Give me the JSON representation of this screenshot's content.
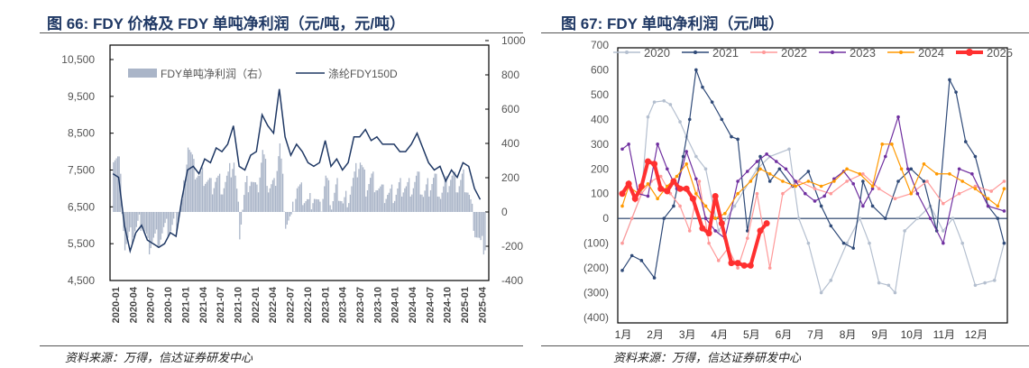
{
  "left": {
    "title": "图 66:  FDY 价格及 FDY 单吨净利润（元/吨，元/吨）",
    "source": "资料来源：万得，信达证券研发中心"
  },
  "right": {
    "title": "图 67:  FDY 单吨净利润（元/吨）",
    "source": "资料来源：万得，信达证券研发中心"
  },
  "chart_data": [
    {
      "type": "bar+line",
      "title": "FDY 价格及 FDY 单吨净利润（元/吨，元/吨）",
      "legend": [
        "FDY单吨净利润（右）",
        "涤纶FDY150D"
      ],
      "legend_placement": "top-left",
      "yleft": {
        "lim": [
          4500,
          11000
        ],
        "ticks": [
          "10,500",
          "9,500",
          "8,500",
          "7,500",
          "6,500",
          "5,500",
          "4,500"
        ],
        "tick_values": [
          10500,
          9500,
          8500,
          7500,
          6500,
          5500,
          4500
        ]
      },
      "yright": {
        "lim": [
          -400,
          1000
        ],
        "ticks": [
          "1000",
          "800",
          "600",
          "400",
          "200",
          "0",
          "-200",
          "-400"
        ],
        "tick_values": [
          1000,
          800,
          600,
          400,
          200,
          0,
          -200,
          -400
        ]
      },
      "xticks": [
        "2020-01",
        "2020-04",
        "2020-07",
        "2020-10",
        "2021-01",
        "2021-04",
        "2021-07",
        "2021-10",
        "2022-01",
        "2022-04",
        "2022-07",
        "2022-10",
        "2023-01",
        "2023-04",
        "2023-07",
        "2023-10",
        "2024-01",
        "2024-04",
        "2024-07",
        "2024-10",
        "2025-01",
        "2025-04"
      ],
      "price": [
        7400,
        7300,
        6000,
        5300,
        5800,
        6000,
        5600,
        5500,
        5400,
        5500,
        5800,
        5700,
        6700,
        7500,
        7600,
        7400,
        7800,
        7700,
        8100,
        8000,
        8200,
        8700,
        7600,
        7500,
        7900,
        8000,
        9000,
        8700,
        8500,
        9700,
        8400,
        7900,
        8200,
        8000,
        7700,
        7600,
        7700,
        8300,
        7600,
        7800,
        7500,
        7700,
        8400,
        8400,
        8600,
        8300,
        8400,
        8200,
        8200,
        8200,
        8000,
        8000,
        8200,
        8500,
        8100,
        7700,
        7500,
        7600,
        7200,
        7500,
        7300,
        7700,
        7600,
        7000,
        6700
      ],
      "profit": [
        350,
        300,
        -200,
        -150,
        -100,
        -50,
        -200,
        -150,
        -150,
        -100,
        -100,
        -50,
        50,
        400,
        250,
        200,
        200,
        150,
        200,
        150,
        200,
        300,
        -100,
        150,
        200,
        100,
        350,
        150,
        150,
        400,
        -50,
        -50,
        150,
        100,
        50,
        100,
        0,
        200,
        50,
        150,
        50,
        100,
        200,
        300,
        150,
        200,
        150,
        100,
        100,
        100,
        150,
        150,
        150,
        200,
        100,
        150,
        200,
        100,
        150,
        200,
        150,
        200,
        100,
        -100,
        -200
      ]
    },
    {
      "type": "line",
      "title": "FDY 单吨净利润（元/吨）",
      "legend_placement": "top",
      "ylim": [
        -400,
        700
      ],
      "yticks": [
        "700",
        "600",
        "500",
        "400",
        "300",
        "200",
        "100",
        "0",
        "(100)",
        "(200)",
        "(300)",
        "(400)"
      ],
      "ytick_values": [
        700,
        600,
        500,
        400,
        300,
        200,
        100,
        0,
        -100,
        -200,
        -300,
        -400
      ],
      "xticks": [
        "1月",
        "2月",
        "3月",
        "4月",
        "5月",
        "6月",
        "7月",
        "8月",
        "9月",
        "10月",
        "11月",
        "12月"
      ],
      "series": [
        {
          "name": "2020",
          "color": "#b4bfcf",
          "values": [
            [
              1,
              -100
            ],
            [
              1.3,
              0
            ],
            [
              1.6,
              100
            ],
            [
              1.8,
              410
            ],
            [
              2,
              470
            ],
            [
              2.3,
              475
            ],
            [
              2.5,
              460
            ],
            [
              2.8,
              390
            ],
            [
              3,
              330
            ],
            [
              3.3,
              250
            ],
            [
              3.6,
              200
            ],
            [
              4,
              -50
            ],
            [
              4.5,
              50
            ],
            [
              5.2,
              200
            ],
            [
              5.6,
              250
            ],
            [
              6.2,
              280
            ],
            [
              6.5,
              0
            ],
            [
              6.8,
              -100
            ],
            [
              7.2,
              -300
            ],
            [
              7.5,
              -250
            ],
            [
              8,
              -100
            ],
            [
              8.4,
              0
            ],
            [
              8.7,
              -100
            ],
            [
              9,
              -260
            ],
            [
              9.3,
              -270
            ],
            [
              9.5,
              -300
            ],
            [
              9.8,
              -50
            ],
            [
              10.2,
              0
            ],
            [
              10.6,
              50
            ],
            [
              11,
              -50
            ],
            [
              11.3,
              0
            ],
            [
              11.6,
              -100
            ],
            [
              12,
              -270
            ],
            [
              12.3,
              -260
            ],
            [
              12.6,
              -250
            ],
            [
              12.9,
              -100
            ]
          ]
        },
        {
          "name": "2021",
          "color": "#2f4a78",
          "values": [
            [
              1,
              -210
            ],
            [
              1.3,
              -150
            ],
            [
              1.6,
              -170
            ],
            [
              2,
              -240
            ],
            [
              2.3,
              0
            ],
            [
              2.6,
              50
            ],
            [
              2.9,
              250
            ],
            [
              3.1,
              400
            ],
            [
              3.3,
              600
            ],
            [
              3.5,
              530
            ],
            [
              3.8,
              470
            ],
            [
              4.1,
              400
            ],
            [
              4.4,
              330
            ],
            [
              4.6,
              320
            ],
            [
              4.9,
              -50
            ],
            [
              5.3,
              250
            ],
            [
              5.6,
              150
            ],
            [
              5.9,
              200
            ],
            [
              6.3,
              130
            ],
            [
              6.8,
              190
            ],
            [
              7.2,
              50
            ],
            [
              7.5,
              -30
            ],
            [
              7.9,
              -100
            ],
            [
              8.2,
              -120
            ],
            [
              8.5,
              150
            ],
            [
              8.8,
              50
            ],
            [
              9.2,
              0
            ],
            [
              9.6,
              150
            ],
            [
              10,
              200
            ],
            [
              10.4,
              150
            ],
            [
              10.8,
              -50
            ],
            [
              11.2,
              560
            ],
            [
              11.4,
              510
            ],
            [
              11.7,
              310
            ],
            [
              12,
              250
            ],
            [
              12.4,
              50
            ],
            [
              12.7,
              0
            ],
            [
              12.9,
              -100
            ]
          ]
        },
        {
          "name": "2022",
          "color": "#ff9a9a",
          "values": [
            [
              1,
              -100
            ],
            [
              1.3,
              0
            ],
            [
              1.6,
              100
            ],
            [
              1.9,
              150
            ],
            [
              2.2,
              170
            ],
            [
              2.5,
              100
            ],
            [
              2.8,
              50
            ],
            [
              3.1,
              -50
            ],
            [
              3.4,
              150
            ],
            [
              3.7,
              -100
            ],
            [
              4,
              -170
            ],
            [
              4.3,
              -120
            ],
            [
              4.6,
              -200
            ],
            [
              4.9,
              -80
            ],
            [
              5.2,
              100
            ],
            [
              5.6,
              -200
            ],
            [
              6,
              100
            ],
            [
              6.5,
              150
            ],
            [
              7,
              120
            ],
            [
              7.5,
              100
            ],
            [
              8,
              150
            ],
            [
              8.5,
              180
            ],
            [
              9,
              120
            ],
            [
              9.5,
              80
            ],
            [
              10,
              100
            ],
            [
              10.5,
              150
            ],
            [
              11,
              60
            ],
            [
              11.5,
              100
            ],
            [
              12,
              130
            ],
            [
              12.5,
              110
            ],
            [
              12.9,
              150
            ]
          ]
        },
        {
          "name": "2023",
          "color": "#7030a0",
          "values": [
            [
              1,
              280
            ],
            [
              1.2,
              300
            ],
            [
              1.5,
              100
            ],
            [
              1.8,
              90
            ],
            [
              2.1,
              300
            ],
            [
              2.4,
              200
            ],
            [
              2.7,
              120
            ],
            [
              3,
              270
            ],
            [
              3.3,
              160
            ],
            [
              3.6,
              0
            ],
            [
              3.9,
              -50
            ],
            [
              4.2,
              -80
            ],
            [
              4.6,
              150
            ],
            [
              4.9,
              190
            ],
            [
              5.2,
              230
            ],
            [
              5.5,
              260
            ],
            [
              5.8,
              230
            ],
            [
              6.1,
              200
            ],
            [
              6.4,
              150
            ],
            [
              6.7,
              100
            ],
            [
              7,
              70
            ],
            [
              7.3,
              90
            ],
            [
              7.6,
              160
            ],
            [
              7.9,
              190
            ],
            [
              8.2,
              140
            ],
            [
              8.5,
              50
            ],
            [
              8.8,
              120
            ],
            [
              9.2,
              250
            ],
            [
              9.6,
              410
            ],
            [
              9.9,
              200
            ],
            [
              10.2,
              100
            ],
            [
              10.6,
              0
            ],
            [
              11,
              -100
            ],
            [
              11.5,
              200
            ],
            [
              11.9,
              180
            ],
            [
              12.4,
              50
            ],
            [
              12.9,
              30
            ]
          ]
        },
        {
          "name": "2024",
          "color": "#ff9900",
          "values": [
            [
              1,
              50
            ],
            [
              1.2,
              130
            ],
            [
              1.5,
              100
            ],
            [
              1.8,
              140
            ],
            [
              2.1,
              80
            ],
            [
              2.4,
              130
            ],
            [
              2.7,
              170
            ],
            [
              3,
              220
            ],
            [
              3.3,
              100
            ],
            [
              3.6,
              50
            ],
            [
              3.9,
              0
            ],
            [
              4.2,
              20
            ],
            [
              4.6,
              100
            ],
            [
              5,
              150
            ],
            [
              5.3,
              200
            ],
            [
              5.6,
              180
            ],
            [
              6,
              150
            ],
            [
              6.4,
              130
            ],
            [
              6.8,
              150
            ],
            [
              7.2,
              130
            ],
            [
              7.6,
              150
            ],
            [
              8,
              200
            ],
            [
              8.4,
              180
            ],
            [
              8.8,
              130
            ],
            [
              9.1,
              300
            ],
            [
              9.4,
              300
            ],
            [
              9.7,
              200
            ],
            [
              10,
              100
            ],
            [
              10.4,
              220
            ],
            [
              10.8,
              180
            ],
            [
              11.2,
              180
            ],
            [
              11.6,
              150
            ],
            [
              12,
              120
            ],
            [
              12.4,
              80
            ],
            [
              12.7,
              50
            ],
            [
              12.9,
              120
            ]
          ]
        },
        {
          "name": "2025",
          "color": "#ff3030",
          "values": [
            [
              1,
              100
            ],
            [
              1.2,
              140
            ],
            [
              1.4,
              80
            ],
            [
              1.6,
              130
            ],
            [
              1.8,
              230
            ],
            [
              2,
              220
            ],
            [
              2.2,
              120
            ],
            [
              2.4,
              110
            ],
            [
              2.6,
              150
            ],
            [
              2.8,
              120
            ],
            [
              3,
              120
            ],
            [
              3.2,
              80
            ],
            [
              3.5,
              -40
            ],
            [
              3.7,
              -60
            ],
            [
              3.9,
              90
            ],
            [
              4.1,
              -20
            ],
            [
              4.4,
              -180
            ],
            [
              4.6,
              -180
            ],
            [
              4.8,
              -190
            ],
            [
              5,
              -190
            ],
            [
              5.3,
              -50
            ],
            [
              5.5,
              -20
            ]
          ]
        }
      ]
    }
  ]
}
